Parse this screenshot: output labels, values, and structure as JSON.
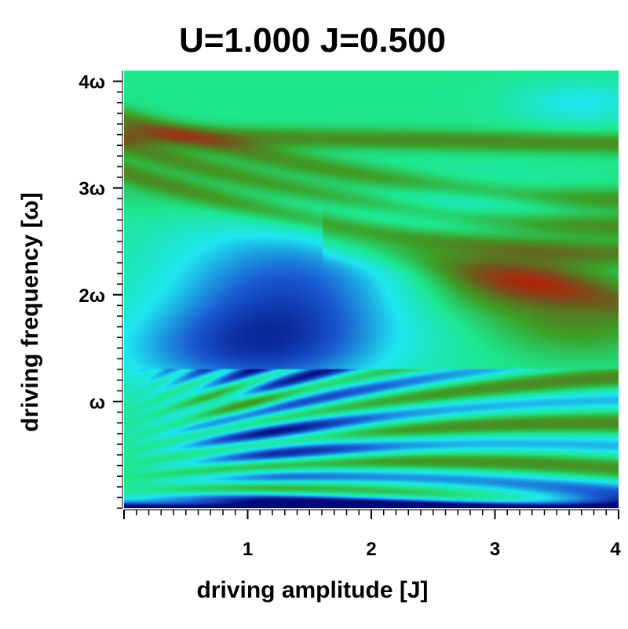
{
  "chart_data": {
    "type": "heatmap",
    "title": "U=1.000 J=0.500",
    "xlabel": "driving amplitude [J]",
    "ylabel": "driving frequency [ω]",
    "xlim": [
      0,
      4
    ],
    "ylim": [
      0,
      4.1
    ],
    "x_ticks": [
      {
        "value": 1,
        "label": "1"
      },
      {
        "value": 2,
        "label": "2"
      },
      {
        "value": 3,
        "label": "3"
      },
      {
        "value": 4,
        "label": "4"
      }
    ],
    "y_ticks": [
      {
        "value": 1,
        "label": "ω"
      },
      {
        "value": 2,
        "label": "2ω"
      },
      {
        "value": 3,
        "label": "3ω"
      },
      {
        "value": 4,
        "label": "4ω"
      }
    ],
    "colormap": [
      "#000a78",
      "#1a5ad2",
      "#1ee6f0",
      "#1ee68c",
      "#3ca028",
      "#6e5a1e",
      "#b41e0a"
    ],
    "value_range": [
      0,
      1
    ]
  }
}
